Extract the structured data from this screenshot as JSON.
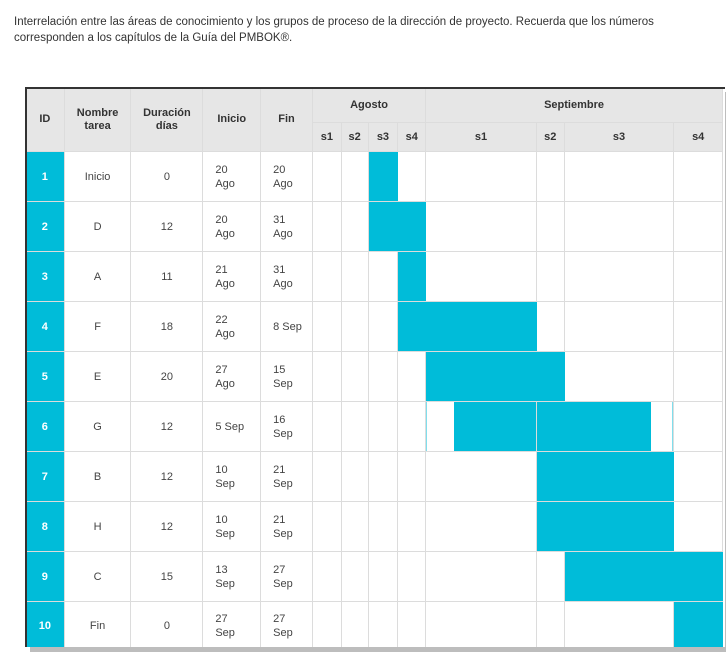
{
  "caption": "Interrelación entre las áreas de conocimiento y los grupos de proceso de la dirección de proyecto. Recuerda que los números corresponden a los capítulos de la Guía del PMBOK®.",
  "colors": {
    "bar": "#00bcd9",
    "header_bg": "#e6e6e6"
  },
  "chart_data": {
    "type": "table",
    "columns": [
      "ID",
      "Nombre tarea",
      "Duración días",
      "Inicio",
      "Fin"
    ],
    "month_groups": [
      {
        "label": "Agosto",
        "weeks": [
          "s1",
          "s2",
          "s3",
          "s4"
        ]
      },
      {
        "label": "Septiembre",
        "weeks": [
          "s1",
          "s2",
          "s3",
          "s4"
        ]
      }
    ],
    "rows": [
      {
        "id": "1",
        "name": "Inicio",
        "duration": "0",
        "start": "20 Ago",
        "end": "20 Ago",
        "gantt": [
          0,
          0,
          1,
          0,
          0,
          0,
          0,
          0
        ]
      },
      {
        "id": "2",
        "name": "D",
        "duration": "12",
        "start": "20 Ago",
        "end": "31 Ago",
        "gantt": [
          0,
          0,
          1,
          1,
          0,
          0,
          0,
          0
        ]
      },
      {
        "id": "3",
        "name": "A",
        "duration": "11",
        "start": "21 Ago",
        "end": "31 Ago",
        "gantt": [
          0,
          0,
          0,
          1,
          0,
          0,
          0,
          0
        ]
      },
      {
        "id": "4",
        "name": "F",
        "duration": "18",
        "start": "22 Ago",
        "end": "8 Sep",
        "gantt": [
          0,
          0,
          0,
          1,
          1,
          0,
          0,
          0
        ]
      },
      {
        "id": "5",
        "name": "E",
        "duration": "20",
        "start": "27 Ago",
        "end": "15 Sep",
        "gantt": [
          0,
          0,
          0,
          0,
          1,
          1,
          0,
          0
        ]
      },
      {
        "id": "6",
        "name": "G",
        "duration": "12",
        "start": "5 Sep",
        "end": "16 Sep",
        "gantt": [
          0,
          0,
          0,
          0,
          0.75,
          1,
          0.8,
          0
        ]
      },
      {
        "id": "7",
        "name": "B",
        "duration": "12",
        "start": "10 Sep",
        "end": "21 Sep",
        "gantt": [
          0,
          0,
          0,
          0,
          0,
          1,
          1,
          0
        ]
      },
      {
        "id": "8",
        "name": "H",
        "duration": "12",
        "start": "10 Sep",
        "end": "21 Sep",
        "gantt": [
          0,
          0,
          0,
          0,
          0,
          1,
          1,
          0
        ]
      },
      {
        "id": "9",
        "name": "C",
        "duration": "15",
        "start": "13 Sep",
        "end": "27 Sep",
        "gantt": [
          0,
          0,
          0,
          0,
          0,
          0,
          1,
          1
        ]
      },
      {
        "id": "10",
        "name": "Fin",
        "duration": "0",
        "start": "27 Sep",
        "end": "27 Sep",
        "gantt": [
          0,
          0,
          0,
          0,
          0,
          0,
          0,
          1
        ]
      }
    ]
  }
}
